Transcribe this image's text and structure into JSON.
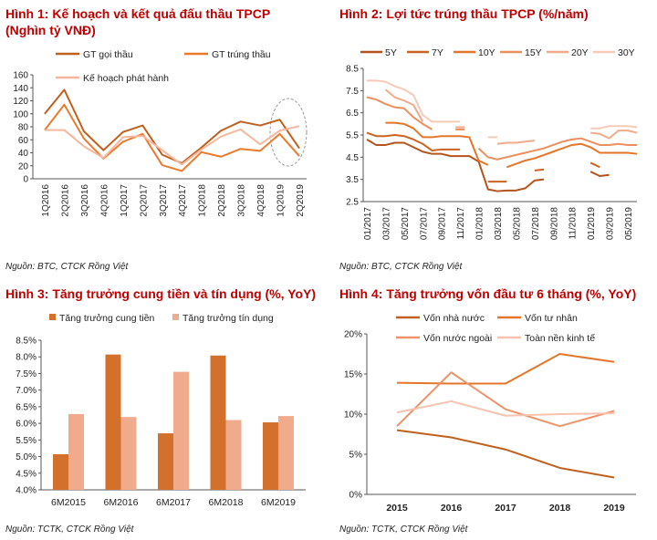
{
  "chart_data": [
    {
      "type": "line",
      "title": "Hình 1: Kế hoạch và kết quả đấu thầu TPCP (Nghìn tỷ VNĐ)",
      "source": "Nguồn: BTC, CTCK Rồng Việt",
      "categories": [
        "1Q2016",
        "2Q2016",
        "3Q2016",
        "4Q2016",
        "1Q2017",
        "2Q2017",
        "3Q2017",
        "4Q2017",
        "1Q2018",
        "2Q2018",
        "3Q2018",
        "4Q2018",
        "1Q2019",
        "2Q2019"
      ],
      "yticks": [
        "0",
        "20",
        "40",
        "60",
        "80",
        "100",
        "120",
        "140",
        "160"
      ],
      "ylim": [
        0,
        160
      ],
      "legend_position": "top",
      "annotation": "dashed ellipse around 1Q2019–2Q2019",
      "series": [
        {
          "name": "GT gọi thầu",
          "color": "#c0601f",
          "values": [
            100,
            137,
            73,
            44,
            72,
            82,
            37,
            24,
            48,
            74,
            88,
            82,
            91,
            47
          ]
        },
        {
          "name": "GT trúng thầu",
          "color": "#ea7a2c",
          "values": [
            75,
            114,
            62,
            31,
            57,
            69,
            21,
            12,
            41,
            34,
            46,
            43,
            69,
            35
          ]
        },
        {
          "name": "Kế hoạch phát hành",
          "color": "#f6b79c",
          "values": [
            75,
            75,
            50,
            32,
            64,
            66,
            44,
            22,
            45,
            65,
            76,
            53,
            74,
            81
          ]
        }
      ]
    },
    {
      "type": "line",
      "title": "Hình 2:  Lợi tức trúng thầu TPCP (%/năm)",
      "source": "Nguồn: BTC, CTCK Rồng Việt",
      "xticks": [
        "01/2017",
        "03/2017",
        "05/2017",
        "07/2017",
        "09/2017",
        "11/2017",
        "01/2018",
        "03/2018",
        "05/2018",
        "07/2018",
        "09/2018",
        "11/2018",
        "01/2019",
        "03/2019",
        "05/2019"
      ],
      "yticks": [
        "2.5",
        "3.5",
        "4.5",
        "5.5",
        "6.5",
        "7.5",
        "8.5"
      ],
      "ylim": [
        2.5,
        8.5
      ],
      "legend_position": "top",
      "series": [
        {
          "name": "5Y",
          "color": "#b4531b",
          "values": [
            5.3,
            5.05,
            5.05,
            5.15,
            5.15,
            4.95,
            4.75,
            4.65,
            4.65,
            4.55,
            4.55,
            4.55,
            4.3,
            3.05,
            2.97,
            3.0,
            3.0,
            3.1,
            3.45,
            3.5,
            null,
            null,
            null,
            null,
            3.85,
            3.65,
            3.7,
            null,
            null,
            null
          ]
        },
        {
          "name": "7Y",
          "color": "#cc621f",
          "values": [
            5.6,
            5.45,
            5.45,
            5.5,
            5.45,
            5.3,
            5.1,
            4.8,
            4.85,
            4.85,
            4.85,
            null,
            null,
            3.4,
            3.4,
            3.4,
            null,
            null,
            3.9,
            3.95,
            null,
            null,
            null,
            null,
            4.25,
            4.05,
            null,
            null,
            null,
            null
          ]
        },
        {
          "name": "10Y",
          "color": "#e4762a",
          "values": [
            null,
            null,
            6.05,
            6.05,
            6.0,
            5.8,
            5.4,
            5.4,
            5.45,
            5.45,
            5.45,
            5.4,
            4.35,
            4.15,
            null,
            4.05,
            4.2,
            4.35,
            4.45,
            4.6,
            4.75,
            4.9,
            5.05,
            5.1,
            4.95,
            4.7,
            4.7,
            4.7,
            4.7,
            4.65
          ]
        },
        {
          "name": "15Y",
          "color": "#ec8f5e",
          "values": [
            7.2,
            7.1,
            6.9,
            6.75,
            6.7,
            6.3,
            6.0,
            5.75,
            null,
            null,
            5.75,
            null,
            4.9,
            4.5,
            4.4,
            4.5,
            4.6,
            4.7,
            4.8,
            4.9,
            5.05,
            5.2,
            5.3,
            5.35,
            5.2,
            5.05,
            5.05,
            5.1,
            5.05,
            5.05
          ]
        },
        {
          "name": "20Y",
          "color": "#f2a98a",
          "values": [
            null,
            null,
            7.55,
            7.2,
            7.05,
            6.85,
            6.1,
            null,
            null,
            null,
            5.85,
            null,
            null,
            null,
            5.1,
            5.15,
            5.15,
            5.2,
            5.25,
            null,
            null,
            null,
            null,
            null,
            5.6,
            5.55,
            5.35,
            5.7,
            5.7,
            5.6
          ]
        },
        {
          "name": "30Y",
          "color": "#f7cab8",
          "values": [
            7.95,
            7.95,
            7.9,
            7.7,
            7.55,
            7.3,
            6.4,
            6.1,
            6.1,
            6.1,
            6.1,
            null,
            null,
            5.4,
            5.4,
            null,
            null,
            null,
            null,
            null,
            null,
            null,
            null,
            null,
            5.8,
            5.8,
            5.9,
            5.9,
            5.9,
            5.85
          ]
        }
      ]
    },
    {
      "type": "bar",
      "title": "Hình 3: Tăng trưởng cung tiền và tín dụng (%, YoY)",
      "source": "Nguồn: TCTK, CTCK Rồng Việt",
      "categories": [
        "6M2015",
        "6M2016",
        "6M2017",
        "6M2018",
        "6M2019"
      ],
      "yticks": [
        "4.0%",
        "4.5%",
        "5.0%",
        "5.5%",
        "6.0%",
        "6.5%",
        "7.0%",
        "7.5%",
        "8.0%",
        "8.5%"
      ],
      "ylim": [
        4.0,
        8.5
      ],
      "legend_position": "top",
      "series": [
        {
          "name": "Tăng trưởng cung tiền",
          "color": "#d2702c",
          "values": [
            5.07,
            8.07,
            5.7,
            8.04,
            6.03
          ]
        },
        {
          "name": "Tăng trưởng tín dụng",
          "color": "#f0aa8c",
          "values": [
            6.28,
            6.19,
            7.55,
            6.1,
            6.22
          ]
        }
      ]
    },
    {
      "type": "line",
      "title": "Hình 4:  Tăng trưởng vốn đầu tư 6 tháng (%, YoY)",
      "source": "Nguồn: TCTK, CTCK Rồng Việt",
      "categories": [
        "2015",
        "2016",
        "2017",
        "2018",
        "2019"
      ],
      "yticks": [
        "0%",
        "5%",
        "10%",
        "15%",
        "20%"
      ],
      "ylim": [
        0,
        20
      ],
      "legend_position": "top",
      "series": [
        {
          "name": "Vốn nhà nước",
          "color": "#c0601f",
          "values": [
            8.0,
            7.1,
            5.6,
            3.3,
            2.1
          ]
        },
        {
          "name": "Vốn tư nhân",
          "color": "#e4762a",
          "values": [
            13.9,
            13.8,
            13.8,
            17.5,
            16.5
          ]
        },
        {
          "name": "Vốn nước ngoài",
          "color": "#ee9268",
          "values": [
            8.5,
            15.2,
            10.6,
            8.5,
            10.4
          ]
        },
        {
          "name": "Toàn nền kinh tế",
          "color": "#f7c3ae",
          "values": [
            10.2,
            11.6,
            9.8,
            10.0,
            10.1
          ]
        }
      ]
    }
  ]
}
